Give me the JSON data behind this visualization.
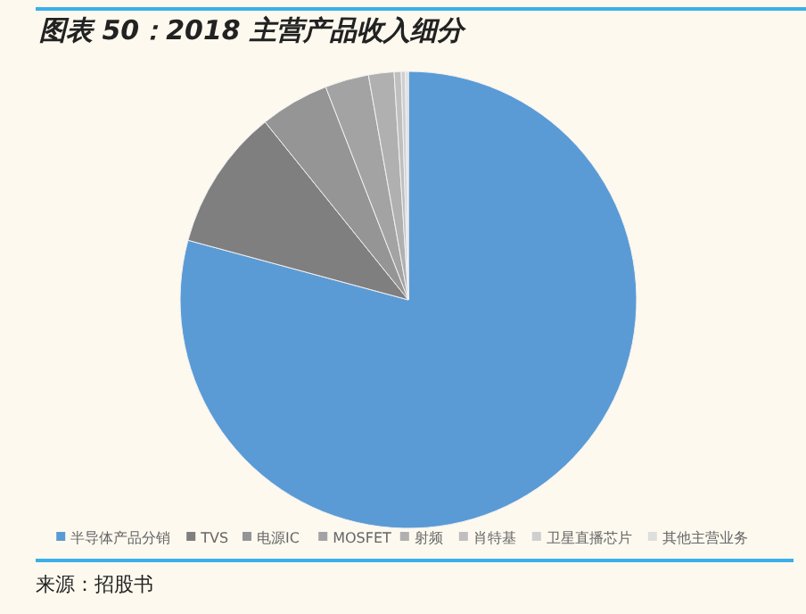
{
  "chart_data": {
    "type": "pie",
    "title": "图表 50：2018 主营产品收入细分",
    "categories": [
      "半导体产品分销",
      "TVS",
      "电源IC",
      "MOSFET",
      "射频",
      "肖特基",
      "卫星直播芯片",
      "其他主营业务"
    ],
    "values": [
      79.2,
      10,
      4.9,
      3.1,
      1.8,
      0.5,
      0.3,
      0.2
    ],
    "colors": [
      "#5b9bd5",
      "#7f7f7f",
      "#959595",
      "#a3a3a3",
      "#b0b0b0",
      "#bfbfbf",
      "#cfcfcf",
      "#dedede"
    ],
    "legend": "bottom",
    "annotations": [
      "来源：招股书"
    ]
  }
}
